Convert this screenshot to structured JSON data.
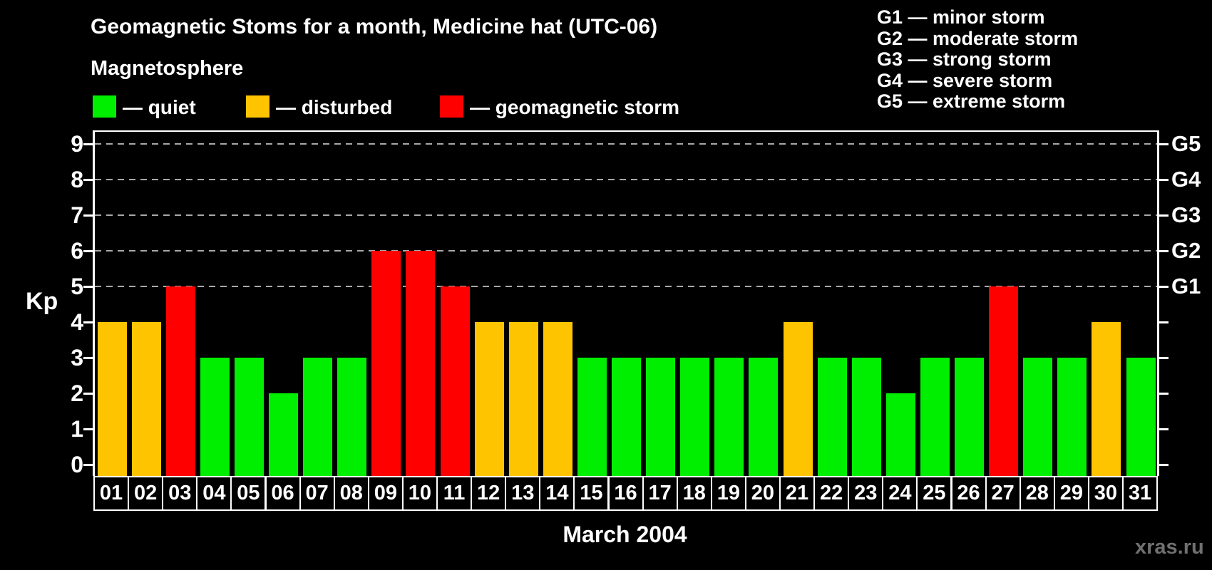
{
  "header": {
    "title": "Geomagnetic Stoms for a month, Medicine hat (UTC-06)",
    "subtitle": "Magnetosphere"
  },
  "legend": {
    "quiet_label": "— quiet",
    "disturbed_label": "— disturbed",
    "storm_label": "— geomagnetic storm"
  },
  "g_legend": [
    "G1 — minor storm",
    "G2 — moderate storm",
    "G3 — strong storm",
    "G4 — severe storm",
    "G5 — extreme storm"
  ],
  "y_axis": {
    "label": "Kp",
    "ticks": [
      0,
      1,
      2,
      3,
      4,
      5,
      6,
      7,
      8,
      9
    ]
  },
  "right_axis": {
    "ticks": [
      0,
      1,
      2,
      3,
      4,
      5,
      6,
      7,
      8,
      9
    ],
    "labels": {
      "5": "G1",
      "6": "G2",
      "7": "G3",
      "8": "G4",
      "9": "G5"
    }
  },
  "x_axis": {
    "label": "March 2004"
  },
  "watermark": "xras.ru",
  "colors": {
    "quiet": "#00ee00",
    "disturbed": "#ffc400",
    "storm": "#ff0000",
    "grid": "#a8a8a8",
    "axis": "#ffffff",
    "watermark": "#707070"
  },
  "chart_data": {
    "type": "bar",
    "title": "Geomagnetic Stoms for a month, Medicine hat (UTC-06)",
    "xlabel": "March 2004",
    "ylabel": "Kp",
    "ylim": [
      0,
      9.4
    ],
    "grid": "dashed horizontal at Kp 5-9 only",
    "legend_position": "top-left",
    "categories": [
      "01",
      "02",
      "03",
      "04",
      "05",
      "06",
      "07",
      "08",
      "09",
      "10",
      "11",
      "12",
      "13",
      "14",
      "15",
      "16",
      "17",
      "18",
      "19",
      "20",
      "21",
      "22",
      "23",
      "24",
      "25",
      "26",
      "27",
      "28",
      "29",
      "30",
      "31"
    ],
    "values": [
      4,
      4,
      5,
      3,
      3,
      2,
      3,
      3,
      6,
      6,
      5,
      4,
      4,
      4,
      3,
      3,
      3,
      3,
      3,
      3,
      4,
      3,
      3,
      2,
      3,
      3,
      5,
      3,
      3,
      4,
      3
    ],
    "status": [
      "disturbed",
      "disturbed",
      "storm",
      "quiet",
      "quiet",
      "quiet",
      "quiet",
      "quiet",
      "storm",
      "storm",
      "storm",
      "disturbed",
      "disturbed",
      "disturbed",
      "quiet",
      "quiet",
      "quiet",
      "quiet",
      "quiet",
      "quiet",
      "disturbed",
      "quiet",
      "quiet",
      "quiet",
      "quiet",
      "quiet",
      "storm",
      "quiet",
      "quiet",
      "disturbed",
      "quiet"
    ],
    "gridlines_at": [
      5,
      6,
      7,
      8,
      9
    ]
  }
}
